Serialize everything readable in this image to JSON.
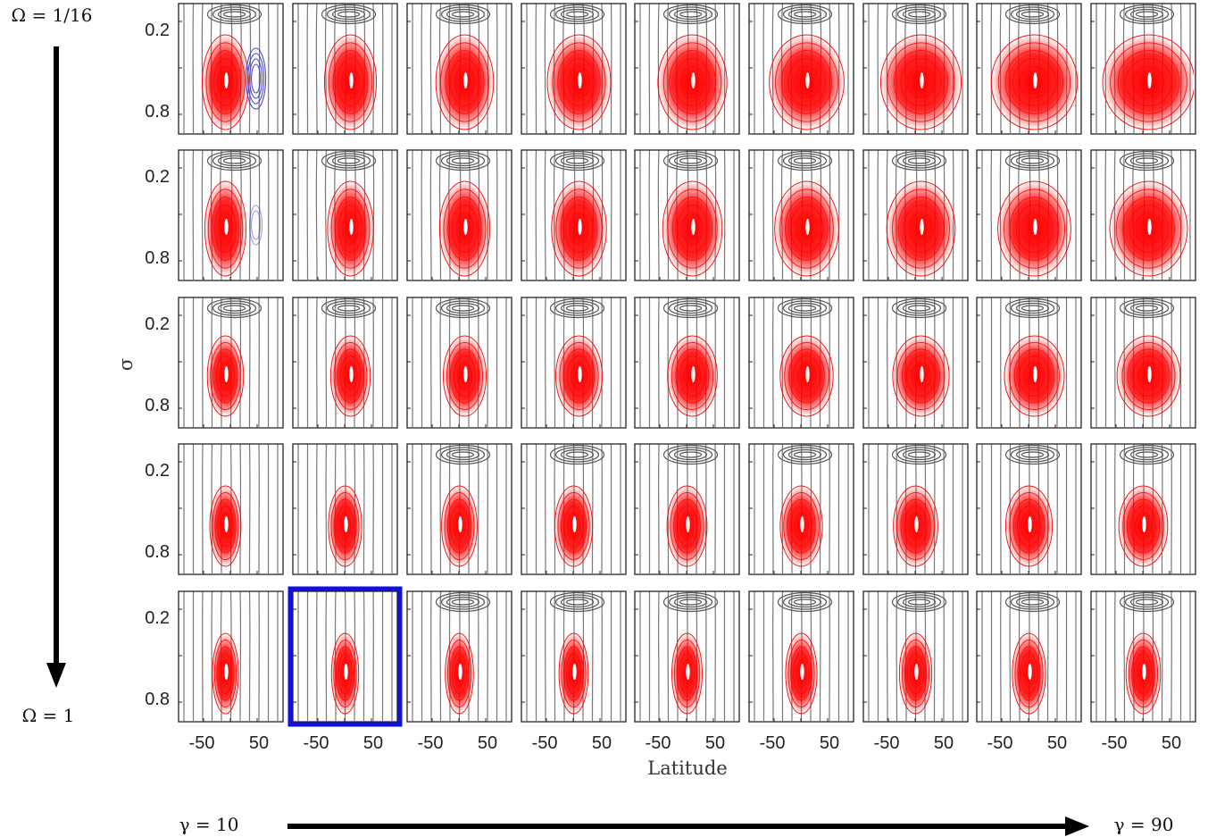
{
  "labels": {
    "omega_top": "Ω = 1/16",
    "omega_bottom": "Ω = 1",
    "gamma_left": "γ = 10",
    "gamma_right": "γ = 90",
    "ylabel": "σ",
    "xlabel": "Latitude"
  },
  "colors": {
    "highlight_frame": "#1010e0",
    "positive_contour": "#ff0000",
    "negative_contour": "#3a3acc",
    "neutral_contour": "#555555"
  },
  "chart_data": {
    "type": "contour",
    "rows": 5,
    "cols": 9,
    "row_parameter": "Ω",
    "row_range": [
      "1/16",
      "1"
    ],
    "col_parameter": "γ",
    "col_range": [
      10,
      90
    ],
    "xlabel": "Latitude",
    "ylabel": "σ",
    "xticks": [
      "-50",
      "50"
    ],
    "yticks": [
      "0.2",
      "0.8"
    ],
    "highlighted_panel": {
      "row": 5,
      "col": 2
    }
  }
}
